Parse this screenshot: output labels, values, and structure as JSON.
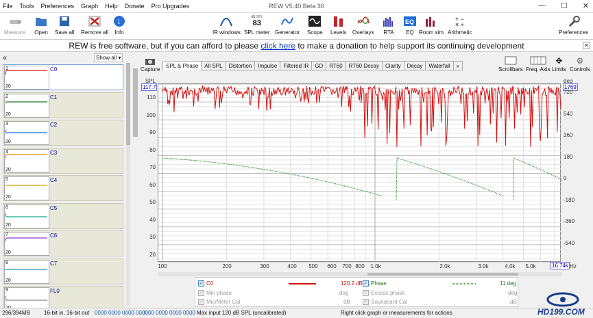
{
  "window": {
    "title": "REW V5.40 Beta 36",
    "menu": [
      "File",
      "Tools",
      "Preferences",
      "Graph",
      "Help",
      "Donate",
      "Pro Upgrades"
    ]
  },
  "toolbar": {
    "measure": "Measure",
    "open": "Open",
    "save_all": "Save all",
    "remove_all": "Remove all",
    "info": "Info",
    "ir_windows": "IR windows",
    "spl_meter": "SPL meter",
    "spl_value": "83",
    "spl_unit": "dB SPL",
    "generator": "Generator",
    "scope": "Scope",
    "levels": "Levels",
    "overlays": "Overlays",
    "rta": "RTA",
    "eq": "EQ",
    "room_sim": "Room sim",
    "arithmetic": "Arithmetic",
    "preferences": "Preferences"
  },
  "donate": {
    "pre": "REW is free software, but if you can afford to please ",
    "link": "click here",
    "post": " to make a donation to help support its continuing development"
  },
  "measurements_panel": {
    "collapse": "«",
    "filter": "Show all",
    "items": [
      {
        "num": "1",
        "name": "C0",
        "color": "#d61010"
      },
      {
        "num": "2",
        "name": "C1",
        "color": "#1f7a1f"
      },
      {
        "num": "3",
        "name": "C2",
        "color": "#1e6fd9"
      },
      {
        "num": "4",
        "name": "C3",
        "color": "#e08a10"
      },
      {
        "num": "5",
        "name": "C4",
        "color": "#c9a300"
      },
      {
        "num": "6",
        "name": "C5",
        "color": "#12b08a"
      },
      {
        "num": "7",
        "name": "C6",
        "color": "#8a3ad0"
      },
      {
        "num": "8",
        "name": "C7",
        "color": "#1a93b8"
      },
      {
        "num": "9",
        "name": "FL0",
        "color": "#888888"
      }
    ],
    "thumb_low": "20"
  },
  "graph": {
    "capture": "Capture",
    "tabs": [
      "SPL & Phase",
      "All SPL",
      "Distortion",
      "Impulse",
      "Filtered IR",
      "GD",
      "RT60",
      "RT60 Decay",
      "Clarity",
      "Decay",
      "Waterfall",
      "»"
    ],
    "controls": {
      "scrollbars": "Scrollbars",
      "freq_axis": "Freq. Axis",
      "limits": "Limits",
      "controls": "Controls"
    },
    "spl_unit": "SPL",
    "deg_unit": "deg",
    "top_left_box": "117.7",
    "top_right_box": "1769",
    "bottom_right_box": "16.74k",
    "hz_label": "Hz",
    "y_left_ticks": [
      "110",
      "100",
      "90",
      "80",
      "70",
      "60",
      "50",
      "40",
      "30",
      "20"
    ],
    "y_right_ticks": [
      "720",
      "540",
      "360",
      "180",
      "0",
      "-180",
      "-360",
      "-540"
    ],
    "x_ticks": [
      "100",
      "200",
      "300",
      "400",
      "500",
      "600",
      "700",
      "800",
      "1.0k",
      "2.0k",
      "3.0k",
      "4.0k",
      "5.0k"
    ]
  },
  "legend": {
    "c0": "C0",
    "c0_value": "120.2 dB",
    "c0_color": "#d61010",
    "phase": "Phase",
    "phase_value": "11 deg",
    "phase_color": "#1a8a1a",
    "min_phase": "Min phase",
    "min_phase_unit": "deg",
    "excess_phase": "Excess phase",
    "excess_phase_unit": "deg",
    "mic_cal": "Mic/Meter Cal",
    "mic_cal_unit": "dB",
    "soundcard_cal": "Soundcard Cal",
    "soundcard_cal_unit": "dB"
  },
  "status": {
    "memory": "296/394MB",
    "bits": "16-bit in, 16-bit out",
    "in_levels": "0000 0000 0000 0000",
    "out_levels": "0000 0000 0000 0000",
    "max_input": "Max input 120 dB SPL (uncalibrated)",
    "hint": "Right click graph or measurements for actions"
  },
  "watermark": "HD199.COM"
}
